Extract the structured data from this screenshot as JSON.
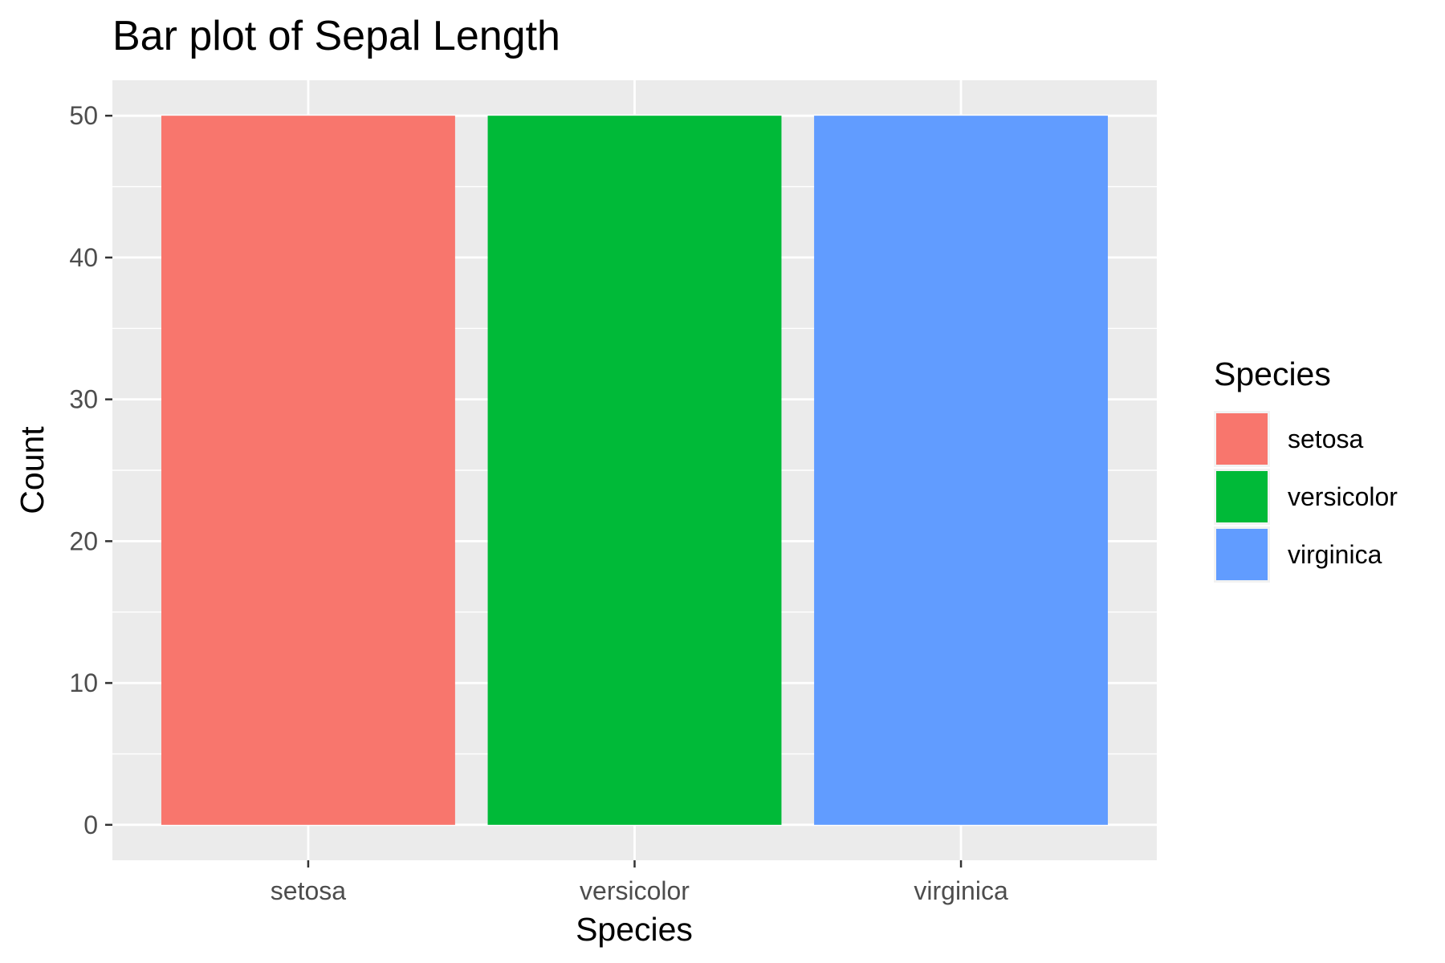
{
  "chart_data": {
    "type": "bar",
    "title": "Bar plot of Sepal Length",
    "xlabel": "Species",
    "ylabel": "Count",
    "categories": [
      "setosa",
      "versicolor",
      "virginica"
    ],
    "values": [
      50,
      50,
      50
    ],
    "ylim": [
      -2.5,
      52.5
    ],
    "yticks": [
      0,
      10,
      20,
      30,
      40,
      50
    ],
    "ytick_labels": [
      "0",
      "10",
      "20",
      "30",
      "40",
      "50"
    ],
    "grid": true,
    "panel_background": "#ebebeb",
    "colors": [
      "#f8766d",
      "#00ba38",
      "#619cff"
    ],
    "legend": {
      "title": "Species",
      "position": "right",
      "entries": [
        "setosa",
        "versicolor",
        "virginica"
      ]
    }
  }
}
